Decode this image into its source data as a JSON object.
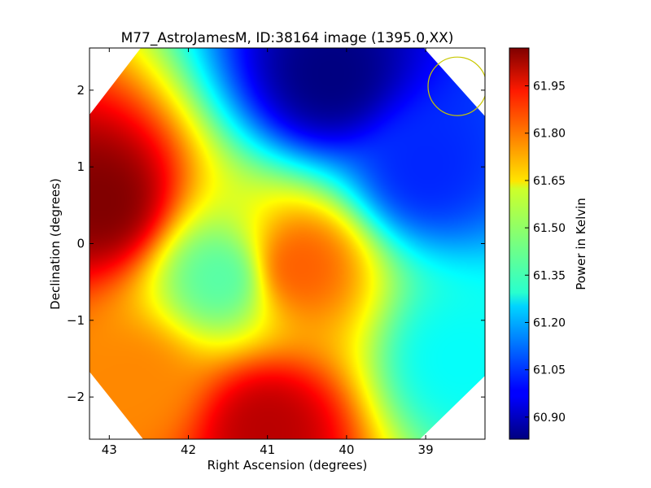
{
  "chart_data": {
    "type": "heatmap",
    "title": "M77_AstroJamesM, ID:38164 image (1395.0,XX)",
    "xlabel": "Right Ascension (degrees)",
    "ylabel": "Declination (degrees)",
    "colorbar_label": "Power in Kelvin",
    "colormap": "jet",
    "xlim": [
      43.25,
      38.25
    ],
    "ylim": [
      -2.55,
      2.55
    ],
    "x_ticks": [
      43,
      42,
      41,
      40,
      39
    ],
    "x_tick_labels": [
      "43",
      "42",
      "41",
      "40",
      "39"
    ],
    "y_ticks": [
      2,
      1,
      0,
      -1,
      -2
    ],
    "y_tick_labels": [
      "2",
      "1",
      "0",
      "−1",
      "−2"
    ],
    "colorbar_range": [
      60.83,
      62.07
    ],
    "colorbar_ticks": [
      60.9,
      61.05,
      61.2,
      61.35,
      61.5,
      61.65,
      61.8,
      61.95
    ],
    "colorbar_tick_labels": [
      "60.90",
      "61.05",
      "61.20",
      "61.35",
      "61.50",
      "61.65",
      "61.80",
      "61.95"
    ],
    "beam_circle": {
      "ra": 38.6,
      "dec": 2.05,
      "radius_deg": 0.37,
      "color": "#c8c800"
    },
    "masked_regions": "corners outside octagonal field",
    "grid": false,
    "features": [
      {
        "ra": 43.1,
        "dec": 0.55,
        "value": 62.07,
        "note": "maximum"
      },
      {
        "ra": 41.0,
        "dec": -2.4,
        "value": 62.0,
        "note": "high"
      },
      {
        "ra": 40.6,
        "dec": -0.3,
        "value": 61.8,
        "note": "ridge"
      },
      {
        "ra": 41.6,
        "dec": -0.45,
        "value": 61.4,
        "note": "local dip"
      },
      {
        "ra": 40.2,
        "dec": 2.2,
        "value": 60.83,
        "note": "minimum"
      },
      {
        "ra": 39.0,
        "dec": 1.0,
        "value": 61.03,
        "note": "low"
      },
      {
        "ra": 38.6,
        "dec": -1.5,
        "value": 61.3,
        "note": "intermediate"
      },
      {
        "ra": 42.7,
        "dec": -1.8,
        "value": 61.75,
        "note": "intermediate"
      }
    ]
  }
}
